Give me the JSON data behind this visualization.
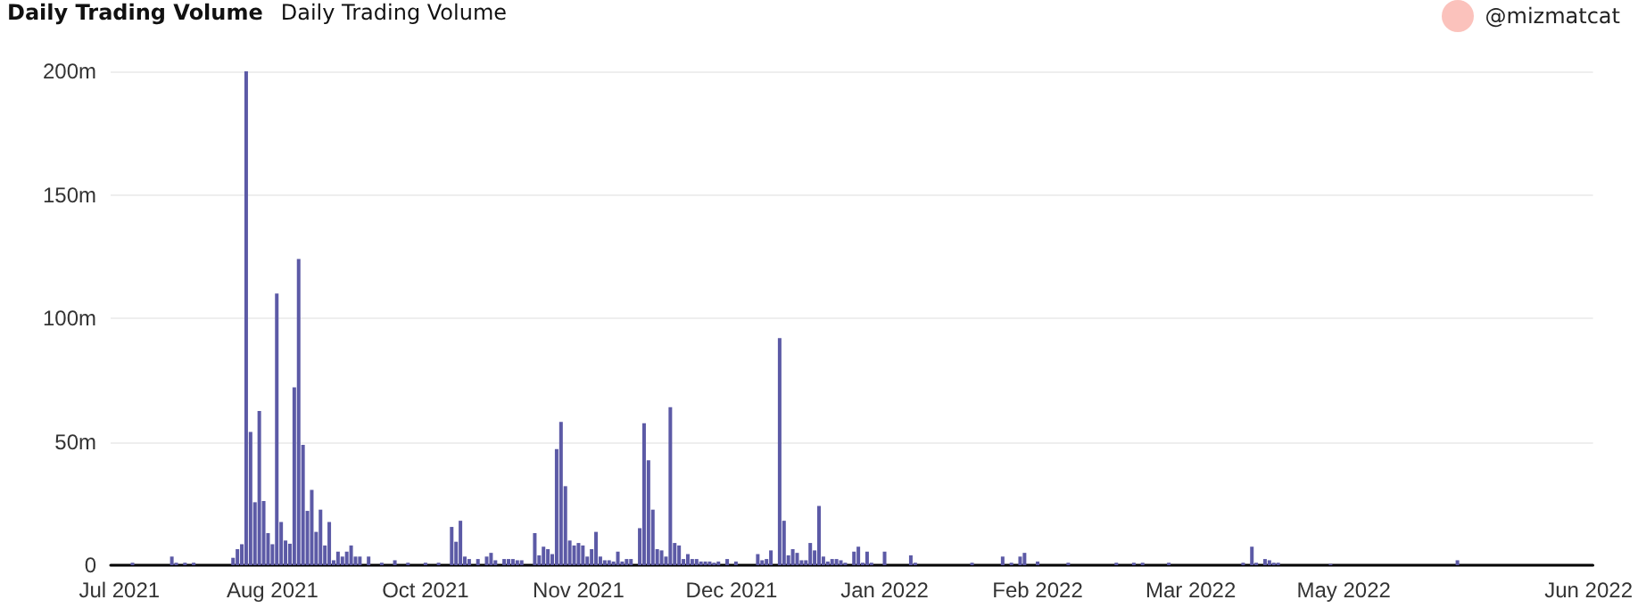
{
  "chart_data": {
    "type": "bar",
    "title": "Daily Trading Volume",
    "subtitle": "Daily Trading Volume",
    "annotations": [
      "@mizmatcat"
    ],
    "x": [
      "2021-07-30",
      "2021-08-08",
      "2021-08-09",
      "2021-08-11",
      "2021-08-13",
      "2021-08-22",
      "2021-08-23",
      "2021-08-24",
      "2021-08-25",
      "2021-08-26",
      "2021-08-27",
      "2021-08-28",
      "2021-08-29",
      "2021-08-30",
      "2021-08-31",
      "2021-09-01",
      "2021-09-02",
      "2021-09-03",
      "2021-09-04",
      "2021-09-05",
      "2021-09-06",
      "2021-09-07",
      "2021-09-08",
      "2021-09-09",
      "2021-09-10",
      "2021-09-11",
      "2021-09-12",
      "2021-09-13",
      "2021-09-14",
      "2021-09-15",
      "2021-09-16",
      "2021-09-17",
      "2021-09-18",
      "2021-09-19",
      "2021-09-20",
      "2021-09-22",
      "2021-09-25",
      "2021-09-28",
      "2021-10-01",
      "2021-10-05",
      "2021-10-08",
      "2021-10-11",
      "2021-10-12",
      "2021-10-13",
      "2021-10-14",
      "2021-10-15",
      "2021-10-17",
      "2021-10-19",
      "2021-10-20",
      "2021-10-21",
      "2021-10-23",
      "2021-10-24",
      "2021-10-25",
      "2021-10-26",
      "2021-10-27",
      "2021-10-30",
      "2021-10-31",
      "2021-11-01",
      "2021-11-02",
      "2021-11-03",
      "2021-11-04",
      "2021-11-05",
      "2021-11-06",
      "2021-11-07",
      "2021-11-08",
      "2021-11-09",
      "2021-11-10",
      "2021-11-11",
      "2021-11-12",
      "2021-11-13",
      "2021-11-14",
      "2021-11-15",
      "2021-11-16",
      "2021-11-17",
      "2021-11-18",
      "2021-11-19",
      "2021-11-20",
      "2021-11-21",
      "2021-11-23",
      "2021-11-24",
      "2021-11-25",
      "2021-11-26",
      "2021-11-27",
      "2021-11-28",
      "2021-11-29",
      "2021-11-30",
      "2021-12-01",
      "2021-12-02",
      "2021-12-03",
      "2021-12-04",
      "2021-12-05",
      "2021-12-06",
      "2021-12-07",
      "2021-12-08",
      "2021-12-09",
      "2021-12-10",
      "2021-12-11",
      "2021-12-13",
      "2021-12-15",
      "2021-12-20",
      "2021-12-21",
      "2021-12-22",
      "2021-12-23",
      "2021-12-25",
      "2021-12-26",
      "2021-12-27",
      "2021-12-28",
      "2021-12-29",
      "2021-12-30",
      "2021-12-31",
      "2022-01-01",
      "2022-01-02",
      "2022-01-03",
      "2022-01-04",
      "2022-01-05",
      "2022-01-06",
      "2022-01-07",
      "2022-01-08",
      "2022-01-09",
      "2022-01-11",
      "2022-01-12",
      "2022-01-13",
      "2022-01-14",
      "2022-01-15",
      "2022-01-18",
      "2022-01-24",
      "2022-01-25",
      "2022-02-07",
      "2022-02-14",
      "2022-02-16",
      "2022-02-18",
      "2022-02-19",
      "2022-02-22",
      "2022-03-01",
      "2022-03-12",
      "2022-03-16",
      "2022-03-18",
      "2022-03-24",
      "2022-04-10",
      "2022-04-12",
      "2022-04-13",
      "2022-04-15",
      "2022-04-16",
      "2022-04-17",
      "2022-04-18",
      "2022-04-30",
      "2022-05-29"
    ],
    "values": [
      1,
      3.5,
      1,
      1,
      1,
      3,
      6.5,
      8.5,
      200,
      54,
      25.5,
      62.5,
      26,
      13,
      8.5,
      110,
      17.5,
      10,
      8.7,
      72,
      124,
      48.7,
      22,
      30.5,
      13.5,
      22.5,
      8,
      17.5,
      2,
      5.5,
      3.5,
      5.5,
      8,
      3.5,
      3.5,
      3.5,
      1,
      2,
      1,
      1,
      1,
      15.5,
      9.5,
      18,
      3.5,
      2.5,
      2.5,
      3.5,
      5,
      2,
      2.5,
      2.5,
      2.5,
      2,
      2,
      13,
      4,
      7.5,
      6.5,
      4.5,
      47,
      58,
      32,
      10,
      8,
      9,
      8,
      3.5,
      6.5,
      13.5,
      3.5,
      2,
      2,
      1.5,
      5.5,
      1.5,
      2.5,
      2.5,
      15,
      57.5,
      42.5,
      22.5,
      6.5,
      6,
      3.5,
      64,
      9,
      8,
      2.5,
      4.5,
      2.5,
      2.5,
      1.5,
      1.5,
      1.5,
      1,
      1.5,
      2.5,
      1.5,
      4.5,
      2,
      2.5,
      6,
      92,
      18,
      4,
      6.5,
      5,
      2,
      2,
      9,
      6,
      24,
      3.5,
      1.5,
      2.5,
      2.5,
      2,
      1,
      5.5,
      7.5,
      1,
      5.5,
      1,
      5.5,
      4,
      1,
      1,
      3.5,
      1,
      3.5,
      5,
      1.5,
      1,
      1,
      1,
      1,
      1,
      1,
      7.5,
      1,
      2.5,
      2,
      1,
      1,
      0.5,
      2
    ],
    "color": "#5c5aa6",
    "xlim": [
      "2021-07-25",
      "2022-06-29"
    ],
    "xticks": [
      {
        "value": "2021-07-27",
        "label": "Jul 2021"
      },
      {
        "value": "2021-08-31",
        "label": "Aug 2021"
      },
      {
        "value": "2021-10-05",
        "label": "Oct 2021"
      },
      {
        "value": "2021-11-09",
        "label": "Nov 2021"
      },
      {
        "value": "2021-12-14",
        "label": "Dec 2021"
      },
      {
        "value": "2022-01-18",
        "label": "Jan 2022"
      },
      {
        "value": "2022-02-22",
        "label": "Feb 2022"
      },
      {
        "value": "2022-03-29",
        "label": "Mar 2022"
      },
      {
        "value": "2022-05-03",
        "label": "May 2022"
      },
      {
        "value": "2022-06-28",
        "label": "Jun 2022"
      }
    ],
    "ylim": [
      0,
      200
    ],
    "yticks": [
      0,
      {
        "value": 50,
        "label": "50m"
      },
      {
        "value": 100,
        "label": "100m"
      },
      {
        "value": 150,
        "label": "150m"
      },
      {
        "value": 200,
        "label": "200m"
      }
    ],
    "grid": "y"
  }
}
